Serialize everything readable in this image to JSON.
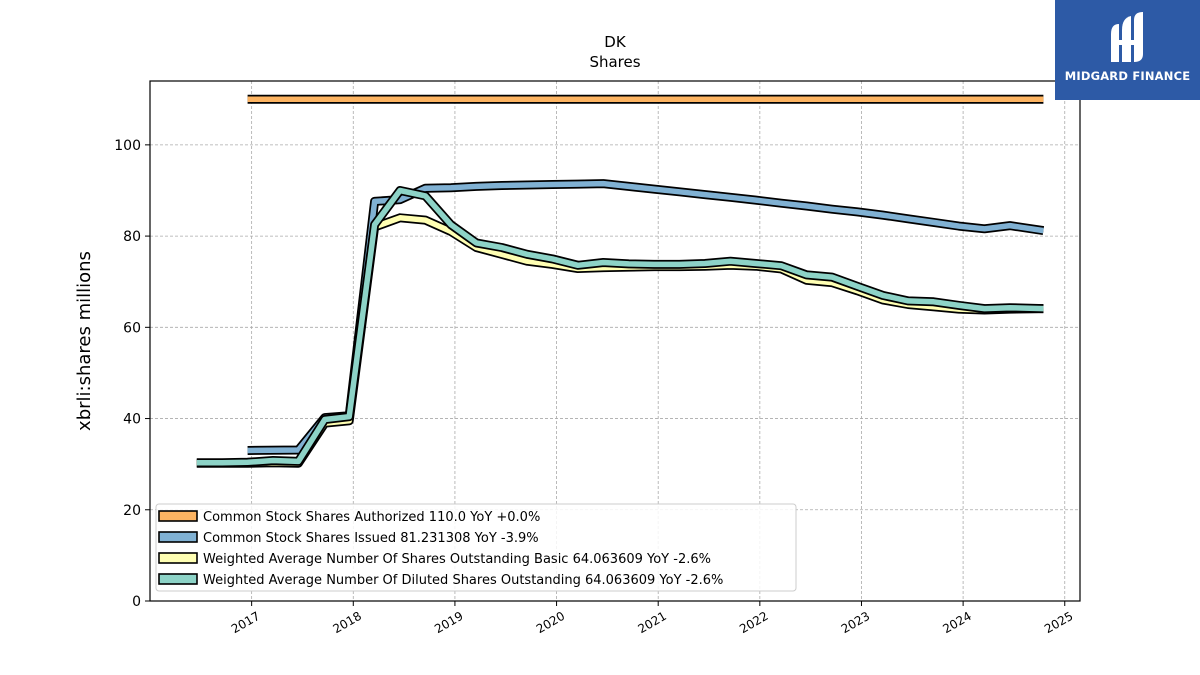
{
  "chart_data": {
    "type": "line",
    "title": "DK",
    "subtitle": "Shares",
    "xlabel": "",
    "ylabel": "xbrli:shares millions",
    "xlim": [
      2016.0,
      2025.15
    ],
    "ylim": [
      0,
      114
    ],
    "x_ticks": [
      "2017",
      "2018",
      "2019",
      "2020",
      "2021",
      "2022",
      "2023",
      "2024",
      "2025"
    ],
    "y_ticks": [
      "0",
      "20",
      "40",
      "60",
      "80",
      "100"
    ],
    "grid": true,
    "legend_position": "lower-left",
    "series": [
      {
        "name": "Common Stock Shares Authorized",
        "legend_label": "Common Stock Shares Authorized  110.0 YoY +0.0%",
        "color": "#fdb462",
        "x": [
          2016.96,
          2024.79
        ],
        "y": [
          110.0,
          110.0
        ]
      },
      {
        "name": "Common Stock Shares Issued",
        "legend_label": "Common Stock Shares Issued  81.231308 YoY -3.9%",
        "color": "#80b1d3",
        "x": [
          2016.96,
          2017.46,
          2017.72,
          2017.96,
          2018.21,
          2018.46,
          2018.71,
          2018.96,
          2019.21,
          2019.46,
          2019.71,
          2019.96,
          2020.21,
          2020.46,
          2020.71,
          2020.96,
          2021.21,
          2021.46,
          2021.71,
          2021.96,
          2022.21,
          2022.46,
          2022.71,
          2022.96,
          2023.21,
          2023.46,
          2023.71,
          2023.96,
          2024.21,
          2024.46,
          2024.79
        ],
        "y": [
          33.0,
          33.1,
          40.2,
          40.6,
          87.6,
          88.0,
          90.5,
          90.6,
          90.9,
          91.1,
          91.2,
          91.3,
          91.4,
          91.5,
          90.9,
          90.3,
          89.7,
          89.1,
          88.5,
          87.9,
          87.2,
          86.6,
          85.9,
          85.3,
          84.6,
          83.8,
          83.0,
          82.2,
          81.6,
          82.3,
          81.2
        ]
      },
      {
        "name": "Weighted Average Number Of Shares Outstanding Basic",
        "legend_label": "Weighted Average Number Of Shares Outstanding Basic  64.063609 YoY -2.6%",
        "color": "#ffffb3",
        "x": [
          2016.46,
          2016.71,
          2016.96,
          2017.21,
          2017.46,
          2017.72,
          2017.96,
          2018.21,
          2018.46,
          2018.71,
          2018.96,
          2019.21,
          2019.46,
          2019.71,
          2019.96,
          2020.21,
          2020.46,
          2020.71,
          2020.96,
          2021.21,
          2021.46,
          2021.71,
          2021.96,
          2022.21,
          2022.46,
          2022.71,
          2022.96,
          2023.21,
          2023.46,
          2023.71,
          2023.96,
          2024.21,
          2024.46,
          2024.79
        ],
        "y": [
          30.2,
          30.2,
          30.2,
          30.3,
          30.2,
          39.0,
          39.5,
          82.0,
          84.0,
          83.5,
          81.0,
          77.5,
          76.0,
          74.5,
          73.8,
          72.9,
          73.1,
          73.2,
          73.3,
          73.3,
          73.4,
          73.6,
          73.4,
          72.8,
          70.3,
          69.8,
          68.0,
          66.0,
          65.0,
          64.5,
          64.0,
          63.8,
          64.0,
          64.1
        ]
      },
      {
        "name": "Weighted Average Number Of Diluted Shares Outstanding",
        "legend_label": "Weighted Average Number Of Diluted Shares Outstanding  64.063609 YoY -2.6%",
        "color": "#8dd3c7",
        "x": [
          2016.46,
          2016.71,
          2016.96,
          2017.21,
          2017.46,
          2017.72,
          2017.96,
          2018.21,
          2018.46,
          2018.71,
          2018.96,
          2019.21,
          2019.46,
          2019.71,
          2019.96,
          2020.21,
          2020.46,
          2020.71,
          2020.96,
          2021.21,
          2021.46,
          2021.71,
          2021.96,
          2022.21,
          2022.46,
          2022.71,
          2022.96,
          2023.21,
          2023.46,
          2023.71,
          2023.96,
          2024.21,
          2024.46,
          2024.79
        ],
        "y": [
          30.3,
          30.3,
          30.4,
          30.8,
          30.6,
          39.8,
          40.4,
          82.5,
          90.0,
          88.8,
          82.5,
          78.5,
          77.5,
          76.0,
          75.0,
          73.6,
          74.2,
          73.9,
          73.8,
          73.8,
          74.0,
          74.5,
          74.0,
          73.5,
          71.5,
          71.0,
          69.0,
          67.0,
          65.8,
          65.6,
          64.8,
          64.1,
          64.3,
          64.1
        ]
      }
    ]
  },
  "logo": {
    "text": "MIDGARD FINANCE",
    "bg_color": "#2d5aa6",
    "icon": "midgard-finance-logo-icon"
  }
}
